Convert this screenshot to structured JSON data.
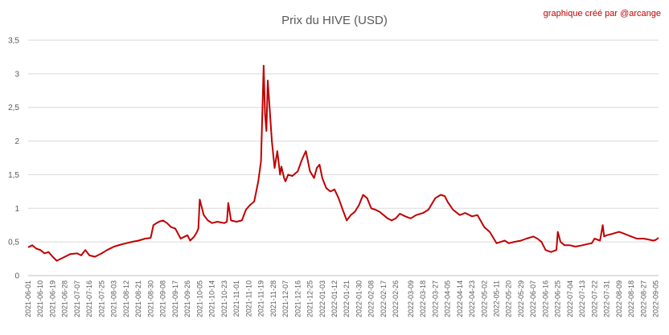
{
  "chart_data": {
    "type": "line",
    "title": "Prix du HIVE (USD)",
    "credit": "graphique créé par @arcange",
    "ylim": [
      0,
      3.5
    ],
    "yticks": [
      "0",
      "0,5",
      "1",
      "1,5",
      "2",
      "2,5",
      "3",
      "3,5"
    ],
    "grid": true,
    "legend": "none",
    "x_start": "2021-06-01",
    "x_end": "2022-09-07",
    "x_tick_labels": [
      "2021-06-01",
      "2021-06-10",
      "2021-06-19",
      "2021-06-28",
      "2021-07-07",
      "2021-07-16",
      "2021-07-25",
      "2021-08-03",
      "2021-08-12",
      "2021-08-21",
      "2021-08-30",
      "2021-09-08",
      "2021-09-17",
      "2021-09-26",
      "2021-10-05",
      "2021-10-14",
      "2021-10-23",
      "2021-11-01",
      "2021-11-10",
      "2021-11-19",
      "2021-11-28",
      "2021-12-07",
      "2021-12-16",
      "2021-12-25",
      "2022-01-03",
      "2022-01-12",
      "2022-01-21",
      "2022-01-30",
      "2022-02-08",
      "2022-02-17",
      "2022-02-26",
      "2022-03-09",
      "2022-03-18",
      "2022-03-27",
      "2022-04-05",
      "2022-04-14",
      "2022-04-23",
      "2022-05-02",
      "2022-05-11",
      "2022-05-20",
      "2022-05-29",
      "2022-06-07",
      "2022-06-16",
      "2022-06-25",
      "2022-07-04",
      "2022-07-13",
      "2022-07-22",
      "2022-07-31",
      "2022-08-09",
      "2022-08-18",
      "2022-08-27",
      "2022-09-05"
    ],
    "series": [
      {
        "x": [
          "2021-06-01",
          "2021-06-04",
          "2021-06-07",
          "2021-06-10",
          "2021-06-13",
          "2021-06-16",
          "2021-06-19",
          "2021-06-22",
          "2021-06-25",
          "2021-06-28",
          "2021-07-02",
          "2021-07-07",
          "2021-07-10",
          "2021-07-13",
          "2021-07-16",
          "2021-07-20",
          "2021-07-25",
          "2021-07-29",
          "2021-08-03",
          "2021-08-08",
          "2021-08-12",
          "2021-08-16",
          "2021-08-21",
          "2021-08-26",
          "2021-08-30",
          "2021-09-01",
          "2021-09-05",
          "2021-09-08",
          "2021-09-11",
          "2021-09-14",
          "2021-09-17",
          "2021-09-21",
          "2021-09-26",
          "2021-09-28",
          "2021-10-01",
          "2021-10-03",
          "2021-10-04",
          "2021-10-05",
          "2021-10-08",
          "2021-10-11",
          "2021-10-14",
          "2021-10-18",
          "2021-10-23",
          "2021-10-25",
          "2021-10-26",
          "2021-10-28",
          "2021-11-01",
          "2021-11-05",
          "2021-11-08",
          "2021-11-11",
          "2021-11-14",
          "2021-11-17",
          "2021-11-19",
          "2021-11-21",
          "2021-11-22",
          "2021-11-23",
          "2021-11-24",
          "2021-11-25",
          "2021-11-26",
          "2021-11-27",
          "2021-11-28",
          "2021-11-29",
          "2021-12-01",
          "2021-12-03",
          "2021-12-04",
          "2021-12-06",
          "2021-12-07",
          "2021-12-09",
          "2021-12-12",
          "2021-12-16",
          "2021-12-19",
          "2021-12-22",
          "2021-12-25",
          "2021-12-28",
          "2021-12-30",
          "2022-01-01",
          "2022-01-03",
          "2022-01-06",
          "2022-01-09",
          "2022-01-12",
          "2022-01-15",
          "2022-01-18",
          "2022-01-21",
          "2022-01-24",
          "2022-01-27",
          "2022-01-30",
          "2022-02-02",
          "2022-02-05",
          "2022-02-08",
          "2022-02-11",
          "2022-02-14",
          "2022-02-17",
          "2022-02-20",
          "2022-02-23",
          "2022-02-26",
          "2022-03-01",
          "2022-03-05",
          "2022-03-09",
          "2022-03-13",
          "2022-03-18",
          "2022-03-22",
          "2022-03-27",
          "2022-03-31",
          "2022-04-03",
          "2022-04-05",
          "2022-04-09",
          "2022-04-14",
          "2022-04-18",
          "2022-04-23",
          "2022-04-27",
          "2022-05-02",
          "2022-05-06",
          "2022-05-09",
          "2022-05-11",
          "2022-05-14",
          "2022-05-17",
          "2022-05-20",
          "2022-05-24",
          "2022-05-29",
          "2022-06-02",
          "2022-06-07",
          "2022-06-10",
          "2022-06-13",
          "2022-06-16",
          "2022-06-20",
          "2022-06-24",
          "2022-06-25",
          "2022-06-27",
          "2022-06-30",
          "2022-07-04",
          "2022-07-08",
          "2022-07-13",
          "2022-07-17",
          "2022-07-20",
          "2022-07-22",
          "2022-07-26",
          "2022-07-28",
          "2022-07-29",
          "2022-07-31",
          "2022-08-04",
          "2022-08-09",
          "2022-08-13",
          "2022-08-18",
          "2022-08-22",
          "2022-08-27",
          "2022-09-01",
          "2022-09-03",
          "2022-09-05",
          "2022-09-07"
        ],
        "values": [
          0.42,
          0.45,
          0.4,
          0.38,
          0.33,
          0.35,
          0.28,
          0.22,
          0.25,
          0.28,
          0.32,
          0.33,
          0.3,
          0.38,
          0.3,
          0.28,
          0.33,
          0.38,
          0.43,
          0.46,
          0.48,
          0.5,
          0.52,
          0.55,
          0.56,
          0.75,
          0.8,
          0.82,
          0.78,
          0.72,
          0.7,
          0.55,
          0.6,
          0.52,
          0.58,
          0.65,
          0.7,
          1.13,
          0.9,
          0.82,
          0.78,
          0.8,
          0.78,
          0.8,
          1.08,
          0.82,
          0.8,
          0.82,
          0.98,
          1.05,
          1.1,
          1.4,
          1.7,
          3.12,
          2.4,
          2.15,
          2.9,
          2.6,
          2.3,
          2.0,
          1.8,
          1.6,
          1.85,
          1.5,
          1.62,
          1.45,
          1.4,
          1.5,
          1.48,
          1.55,
          1.72,
          1.85,
          1.55,
          1.45,
          1.6,
          1.65,
          1.45,
          1.3,
          1.25,
          1.28,
          1.15,
          0.98,
          0.82,
          0.9,
          0.95,
          1.05,
          1.2,
          1.15,
          1.0,
          0.98,
          0.95,
          0.9,
          0.85,
          0.82,
          0.85,
          0.92,
          0.88,
          0.85,
          0.9,
          0.93,
          0.98,
          1.15,
          1.2,
          1.18,
          1.1,
          0.98,
          0.9,
          0.93,
          0.88,
          0.9,
          0.72,
          0.65,
          0.55,
          0.48,
          0.5,
          0.52,
          0.48,
          0.5,
          0.52,
          0.55,
          0.58,
          0.55,
          0.5,
          0.38,
          0.35,
          0.38,
          0.65,
          0.5,
          0.45,
          0.45,
          0.43,
          0.45,
          0.47,
          0.48,
          0.55,
          0.52,
          0.75,
          0.58,
          0.6,
          0.62,
          0.65,
          0.62,
          0.58,
          0.55,
          0.55,
          0.53,
          0.52,
          0.53,
          0.56
        ]
      }
    ]
  }
}
